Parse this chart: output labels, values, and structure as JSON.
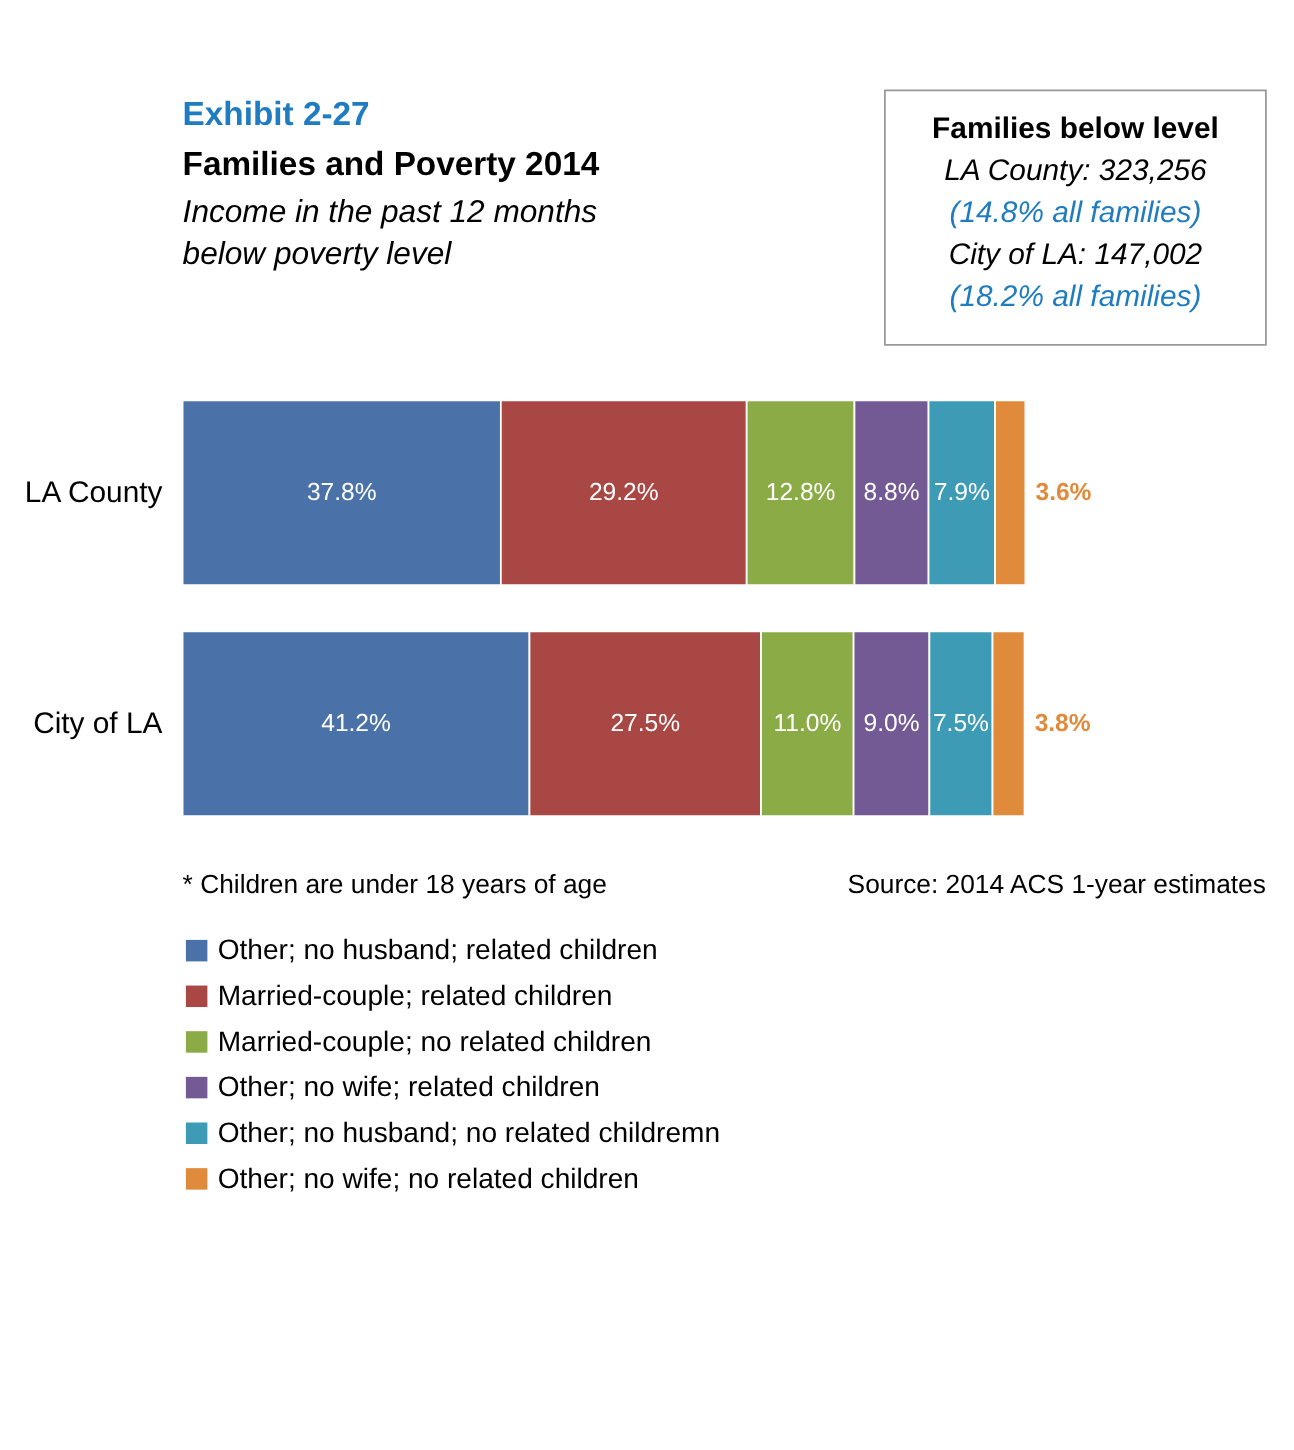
{
  "chart_data": {
    "type": "bar",
    "orientation": "horizontal",
    "stacked": true,
    "title": "Families and Poverty 2014",
    "subtitle": "Income in the past 12 months below poverty level",
    "annotations": [
      "Exhibit 2-27",
      "Families below level",
      "LA County: 323,256",
      "(14.8% all families)",
      "City of LA: 147,002",
      "(18.2% all families)",
      "* Children are under 18 years of age",
      "Source: 2014 ACS 1-year estimates"
    ],
    "categories": [
      "LA County",
      "City of LA"
    ],
    "xlim": [
      0,
      100.1
    ],
    "tick_labels": "y",
    "legend": "bottom",
    "series": [
      {
        "name": "Other; no husband; related children",
        "color": "#4a72a8",
        "values": [
          37.8,
          41.2
        ],
        "value_labels": [
          "37.8%",
          "41.2%"
        ]
      },
      {
        "name": "Married-couple; related children",
        "color": "#a94744",
        "values": [
          29.2,
          27.5
        ],
        "value_labels": [
          "29.2%",
          "27.5%"
        ]
      },
      {
        "name": "Married-couple; no related children",
        "color": "#8aab45",
        "values": [
          12.8,
          11.0
        ],
        "value_labels": [
          "12.8%",
          "11.0%"
        ]
      },
      {
        "name": "Other; no wife; related children",
        "color": "#735a95",
        "values": [
          8.8,
          9.0
        ],
        "value_labels": [
          "8.8%",
          "9.0%"
        ]
      },
      {
        "name": "Other; no husband; no related childremn",
        "color": "#3d9bb5",
        "values": [
          7.9,
          7.5
        ],
        "value_labels": [
          "7.9%",
          "7.5%"
        ]
      },
      {
        "name": "Other; no wife; no related children",
        "color": "#e08a3c",
        "values": [
          3.6,
          3.8
        ],
        "value_labels": [
          "3.6%",
          "3.8%"
        ]
      }
    ]
  }
}
